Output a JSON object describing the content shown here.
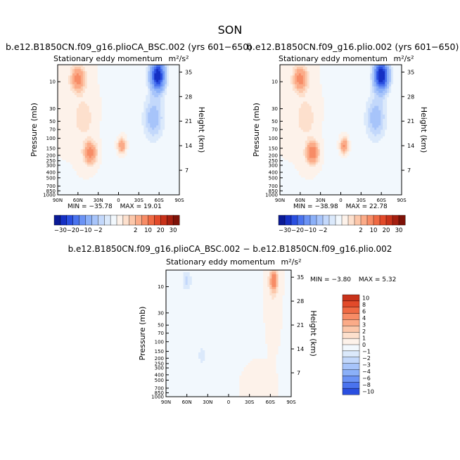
{
  "figure": {
    "title": "SON",
    "colors": {
      "neg": [
        "#f2f8fd",
        "#dbe9fb",
        "#c3d8fb",
        "#a7c4fa",
        "#8bb0f8",
        "#6b93f5",
        "#4a73ee",
        "#2a4fe0",
        "#1530c4",
        "#0a1a96",
        "#05106e"
      ],
      "pos": [
        "#fdf2ea",
        "#fde0cd",
        "#fcc7aa",
        "#fbab88",
        "#f78c66",
        "#ef6a44",
        "#e24a2a",
        "#c8321a",
        "#a51f10",
        "#7e1208"
      ]
    }
  },
  "chart_data": [
    {
      "type": "heatmap",
      "id": "p1",
      "case_title": "b.e12.B1850CN.f09_g16.plioCA_BSC.002 (yrs 601−650)",
      "subtitle": "Stationary eddy momentum",
      "units": "m²/s²",
      "xlabel": "",
      "ylabel": "Pressure (mb)",
      "ylabel_right": "Height (km)",
      "x_ticks": [
        "90N",
        "60N",
        "30N",
        "0",
        "30S",
        "60S",
        "90S"
      ],
      "y_ticks": [
        "10",
        "30",
        "50",
        "70",
        "100",
        "150",
        "200",
        "250",
        "300",
        "400",
        "500",
        "700",
        "850",
        "1000"
      ],
      "right_ticks": [
        "35",
        "28",
        "21",
        "14",
        "7"
      ],
      "stats": {
        "min_label": "MIN =",
        "min": "−35.78",
        "max_label": "MAX =",
        "max": "19.01"
      },
      "xlim": [
        90,
        -90
      ],
      "ylim": [
        1000,
        5
      ],
      "features": [
        {
          "lat": 60,
          "height_km": 33,
          "amp": 12,
          "lat_width": 10,
          "z_width": 3.5
        },
        {
          "lat": 52,
          "height_km": 22,
          "amp": 4,
          "lat_width": 13,
          "z_width": 5
        },
        {
          "lat": 42,
          "height_km": 12,
          "amp": 13,
          "lat_width": 9,
          "z_width": 3
        },
        {
          "lat": -5,
          "height_km": 14,
          "amp": 10,
          "lat_width": 6,
          "z_width": 2.2
        },
        {
          "lat": -58,
          "height_km": 34,
          "amp": -36,
          "lat_width": 10,
          "z_width": 4
        },
        {
          "lat": -52,
          "height_km": 22,
          "amp": -8,
          "lat_width": 14,
          "z_width": 6
        },
        {
          "lat": -10,
          "height_km": 10,
          "amp": -0.8,
          "lat_width": 30,
          "z_width": 12
        }
      ]
    },
    {
      "type": "heatmap",
      "id": "p2",
      "case_title": "b.e12.B1850CN.f09_g16.plio.002 (yrs 601−650)",
      "subtitle": "Stationary eddy momentum",
      "units": "m²/s²",
      "xlabel": "",
      "ylabel": "Pressure (mb)",
      "ylabel_right": "Height (km)",
      "x_ticks": [
        "90N",
        "60N",
        "30N",
        "0",
        "30S",
        "60S",
        "90S"
      ],
      "y_ticks": [
        "10",
        "30",
        "50",
        "70",
        "100",
        "150",
        "200",
        "250",
        "300",
        "400",
        "500",
        "700",
        "850",
        "1000"
      ],
      "right_ticks": [
        "35",
        "28",
        "21",
        "14",
        "7"
      ],
      "stats": {
        "min_label": "MIN =",
        "min": "−38.98",
        "max_label": "MAX =",
        "max": "22.78"
      },
      "xlim": [
        90,
        -90
      ],
      "ylim": [
        1000,
        5
      ],
      "features": [
        {
          "lat": 60,
          "height_km": 33,
          "amp": 12,
          "lat_width": 10,
          "z_width": 3.5
        },
        {
          "lat": 52,
          "height_km": 22,
          "amp": 4,
          "lat_width": 13,
          "z_width": 5
        },
        {
          "lat": 42,
          "height_km": 12,
          "amp": 14,
          "lat_width": 9,
          "z_width": 3
        },
        {
          "lat": -5,
          "height_km": 14,
          "amp": 11,
          "lat_width": 6,
          "z_width": 2.2
        },
        {
          "lat": -60,
          "height_km": 34,
          "amp": -38,
          "lat_width": 10,
          "z_width": 4
        },
        {
          "lat": -52,
          "height_km": 22,
          "amp": -8,
          "lat_width": 14,
          "z_width": 6
        },
        {
          "lat": -10,
          "height_km": 10,
          "amp": -0.8,
          "lat_width": 30,
          "z_width": 12
        }
      ]
    },
    {
      "type": "heatmap",
      "id": "p3",
      "case_title": "b.e12.B1850CN.f09_g16.plioCA_BSC.002 − b.e12.B1850CN.f09_g16.plio.002",
      "subtitle": "Stationary eddy momentum",
      "units": "m²/s²",
      "xlabel": "",
      "ylabel": "Pressure (mb)",
      "ylabel_right": "Height (km)",
      "x_ticks": [
        "90N",
        "60N",
        "30N",
        "0",
        "30S",
        "60S",
        "90S"
      ],
      "y_ticks": [
        "10",
        "30",
        "50",
        "70",
        "100",
        "150",
        "200",
        "250",
        "300",
        "400",
        "500",
        "700",
        "850",
        "1000"
      ],
      "right_ticks": [
        "35",
        "28",
        "21",
        "14",
        "7"
      ],
      "stats": {
        "min_label": "MIN =",
        "min": "−3.80",
        "max_label": "MAX =",
        "max": "5.32"
      },
      "xlim": [
        90,
        -90
      ],
      "ylim": [
        1000,
        5
      ],
      "features": [
        {
          "lat": 60,
          "height_km": 34,
          "amp": -2.2,
          "lat_width": 7,
          "z_width": 3
        },
        {
          "lat": -65,
          "height_km": 34,
          "amp": 5.3,
          "lat_width": 6,
          "z_width": 3.5
        },
        {
          "lat": -62,
          "height_km": 24,
          "amp": 0.8,
          "lat_width": 8,
          "z_width": 8
        },
        {
          "lat": 38,
          "height_km": 12,
          "amp": -1.4,
          "lat_width": 6,
          "z_width": 2.5
        },
        {
          "lat": 0,
          "height_km": 16,
          "amp": -0.5,
          "lat_width": 45,
          "z_width": 14
        },
        {
          "lat": -35,
          "height_km": 5,
          "amp": 0.6,
          "lat_width": 20,
          "z_width": 6
        }
      ]
    }
  ],
  "colorbars": {
    "top": {
      "labels": [
        "−30",
        "−20",
        "−10",
        "−2",
        "2",
        "10",
        "20",
        "30"
      ],
      "levels": [
        -40,
        -30,
        -25,
        -20,
        -15,
        -10,
        -6,
        -4,
        -2,
        0,
        2,
        4,
        6,
        10,
        15,
        20,
        25,
        30,
        40
      ]
    },
    "diff": {
      "labels": [
        "10",
        "8",
        "6",
        "4",
        "3",
        "2",
        "1",
        "0",
        "−1",
        "−2",
        "−3",
        "−4",
        "−6",
        "−8",
        "−10"
      ],
      "levels": [
        -10,
        -8,
        -6,
        -4,
        -3,
        -2,
        -1,
        0,
        1,
        2,
        3,
        4,
        6,
        8,
        10
      ]
    }
  }
}
